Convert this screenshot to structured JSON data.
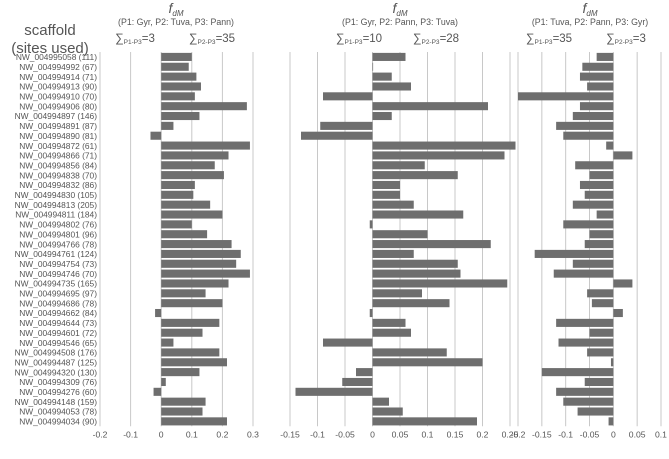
{
  "figure": {
    "y_title_line1": "scaffold",
    "y_title_line2": "(sites used)"
  },
  "chart_data": [
    {
      "type": "bar",
      "orientation": "horizontal",
      "title_main": "f",
      "title_sub": "dM",
      "subtitle": "(P1: Gyr, P2: Tuva, P3: Pann)",
      "sum_left": {
        "sub": "P1-P3",
        "value": "=3"
      },
      "sum_right": {
        "sub": "P2-P3",
        "value": "=35"
      },
      "xlim": [
        -0.2,
        0.3
      ],
      "xticks": [
        "-0.2",
        "-0.1",
        "0",
        "0.1",
        "0.2",
        "0.3"
      ],
      "tick_values": [
        -0.2,
        -0.1,
        0,
        0.1,
        0.2,
        0.3
      ],
      "categories": [
        "NW_004995058 (111)",
        "NW_004994992 (67)",
        "NW_004994914 (71)",
        "NW_004994913 (90)",
        "NW_004994910 (70)",
        "NW_004994906 (80)",
        "NW_004994897 (146)",
        "NW_004994891 (87)",
        "NW_004994890 (81)",
        "NW_004994872 (61)",
        "NW_004994866 (71)",
        "NW_004994856 (84)",
        "NW_004994838 (70)",
        "NW_004994832 (86)",
        "NW_004994830 (105)",
        "NW_004994813 (205)",
        "NW_004994811 (184)",
        "NW_004994802 (76)",
        "NW_004994801 (96)",
        "NW_004994766 (78)",
        "NW_004994761 (124)",
        "NW_004994754 (73)",
        "NW_004994746 (70)",
        "NW_004994735 (165)",
        "NW_004994695 (97)",
        "NW_004994686 (78)",
        "NW_004994662 (84)",
        "NW_004994644 (73)",
        "NW_004994601 (72)",
        "NW_004994546 (65)",
        "NW_004994508 (176)",
        "NW_004994487 (125)",
        "NW_004994320 (130)",
        "NW_004994309 (76)",
        "NW_004994276 (60)",
        "NW_004994148 (159)",
        "NW_004994053 (78)",
        "NW_004994034 (90)"
      ],
      "values": [
        0.1,
        0.09,
        0.115,
        0.13,
        0.11,
        0.28,
        0.125,
        0.04,
        -0.035,
        0.29,
        0.22,
        0.175,
        0.205,
        0.11,
        0.105,
        0.16,
        0.2,
        0.1,
        0.15,
        0.23,
        0.26,
        0.245,
        0.29,
        0.22,
        0.145,
        0.2,
        -0.02,
        0.19,
        0.135,
        0.04,
        0.19,
        0.215,
        0.125,
        0.015,
        -0.025,
        0.145,
        0.135,
        0.215
      ]
    },
    {
      "type": "bar",
      "orientation": "horizontal",
      "title_main": "f",
      "title_sub": "dM",
      "subtitle": "(P1: Gyr, P2: Pann, P3: Tuva)",
      "sum_left": {
        "sub": "P1-P3",
        "value": "=10"
      },
      "sum_right": {
        "sub": "P2-P3",
        "value": "=28"
      },
      "xlim": [
        -0.15,
        0.25
      ],
      "xticks": [
        "-0.15",
        "-0.1",
        "-0.05",
        "0",
        "0.05",
        "0.1",
        "0.15",
        "0.2",
        "0.25"
      ],
      "tick_values": [
        -0.15,
        -0.1,
        -0.05,
        0,
        0.05,
        0.1,
        0.15,
        0.2,
        0.25
      ],
      "values": [
        0.06,
        0.0,
        0.035,
        0.07,
        -0.09,
        0.21,
        0.035,
        -0.095,
        -0.13,
        0.26,
        0.24,
        0.095,
        0.155,
        0.05,
        0.05,
        0.075,
        0.165,
        -0.005,
        0.1,
        0.215,
        0.075,
        0.155,
        0.16,
        0.245,
        0.09,
        0.14,
        -0.005,
        0.06,
        0.07,
        -0.09,
        0.135,
        0.2,
        -0.03,
        -0.055,
        -0.14,
        0.03,
        0.055,
        0.19
      ]
    },
    {
      "type": "bar",
      "orientation": "horizontal",
      "title_main": "f",
      "title_sub": "dM",
      "subtitle": "(P1: Tuva, P2: Pann, P3: Gyr)",
      "sum_left": {
        "sub": "P1-P3",
        "value": "=35"
      },
      "sum_right": {
        "sub": "P2-P3",
        "value": "=3"
      },
      "xlim": [
        -0.2,
        0.1
      ],
      "xticks": [
        "-0.2",
        "-0.15",
        "-0.1",
        "-0.05",
        "0",
        "0.05",
        "0.1"
      ],
      "tick_values": [
        -0.2,
        -0.15,
        -0.1,
        -0.05,
        0,
        0.05,
        0.1
      ],
      "values": [
        -0.035,
        -0.065,
        -0.07,
        -0.055,
        -0.2,
        -0.07,
        -0.085,
        -0.12,
        -0.105,
        -0.015,
        0.04,
        -0.08,
        -0.05,
        -0.07,
        -0.06,
        -0.085,
        -0.035,
        -0.105,
        -0.05,
        -0.06,
        -0.165,
        -0.085,
        -0.125,
        0.04,
        -0.055,
        -0.045,
        0.02,
        -0.12,
        -0.05,
        -0.115,
        -0.055,
        -0.005,
        -0.15,
        -0.06,
        -0.12,
        -0.105,
        -0.075,
        -0.01
      ]
    }
  ]
}
